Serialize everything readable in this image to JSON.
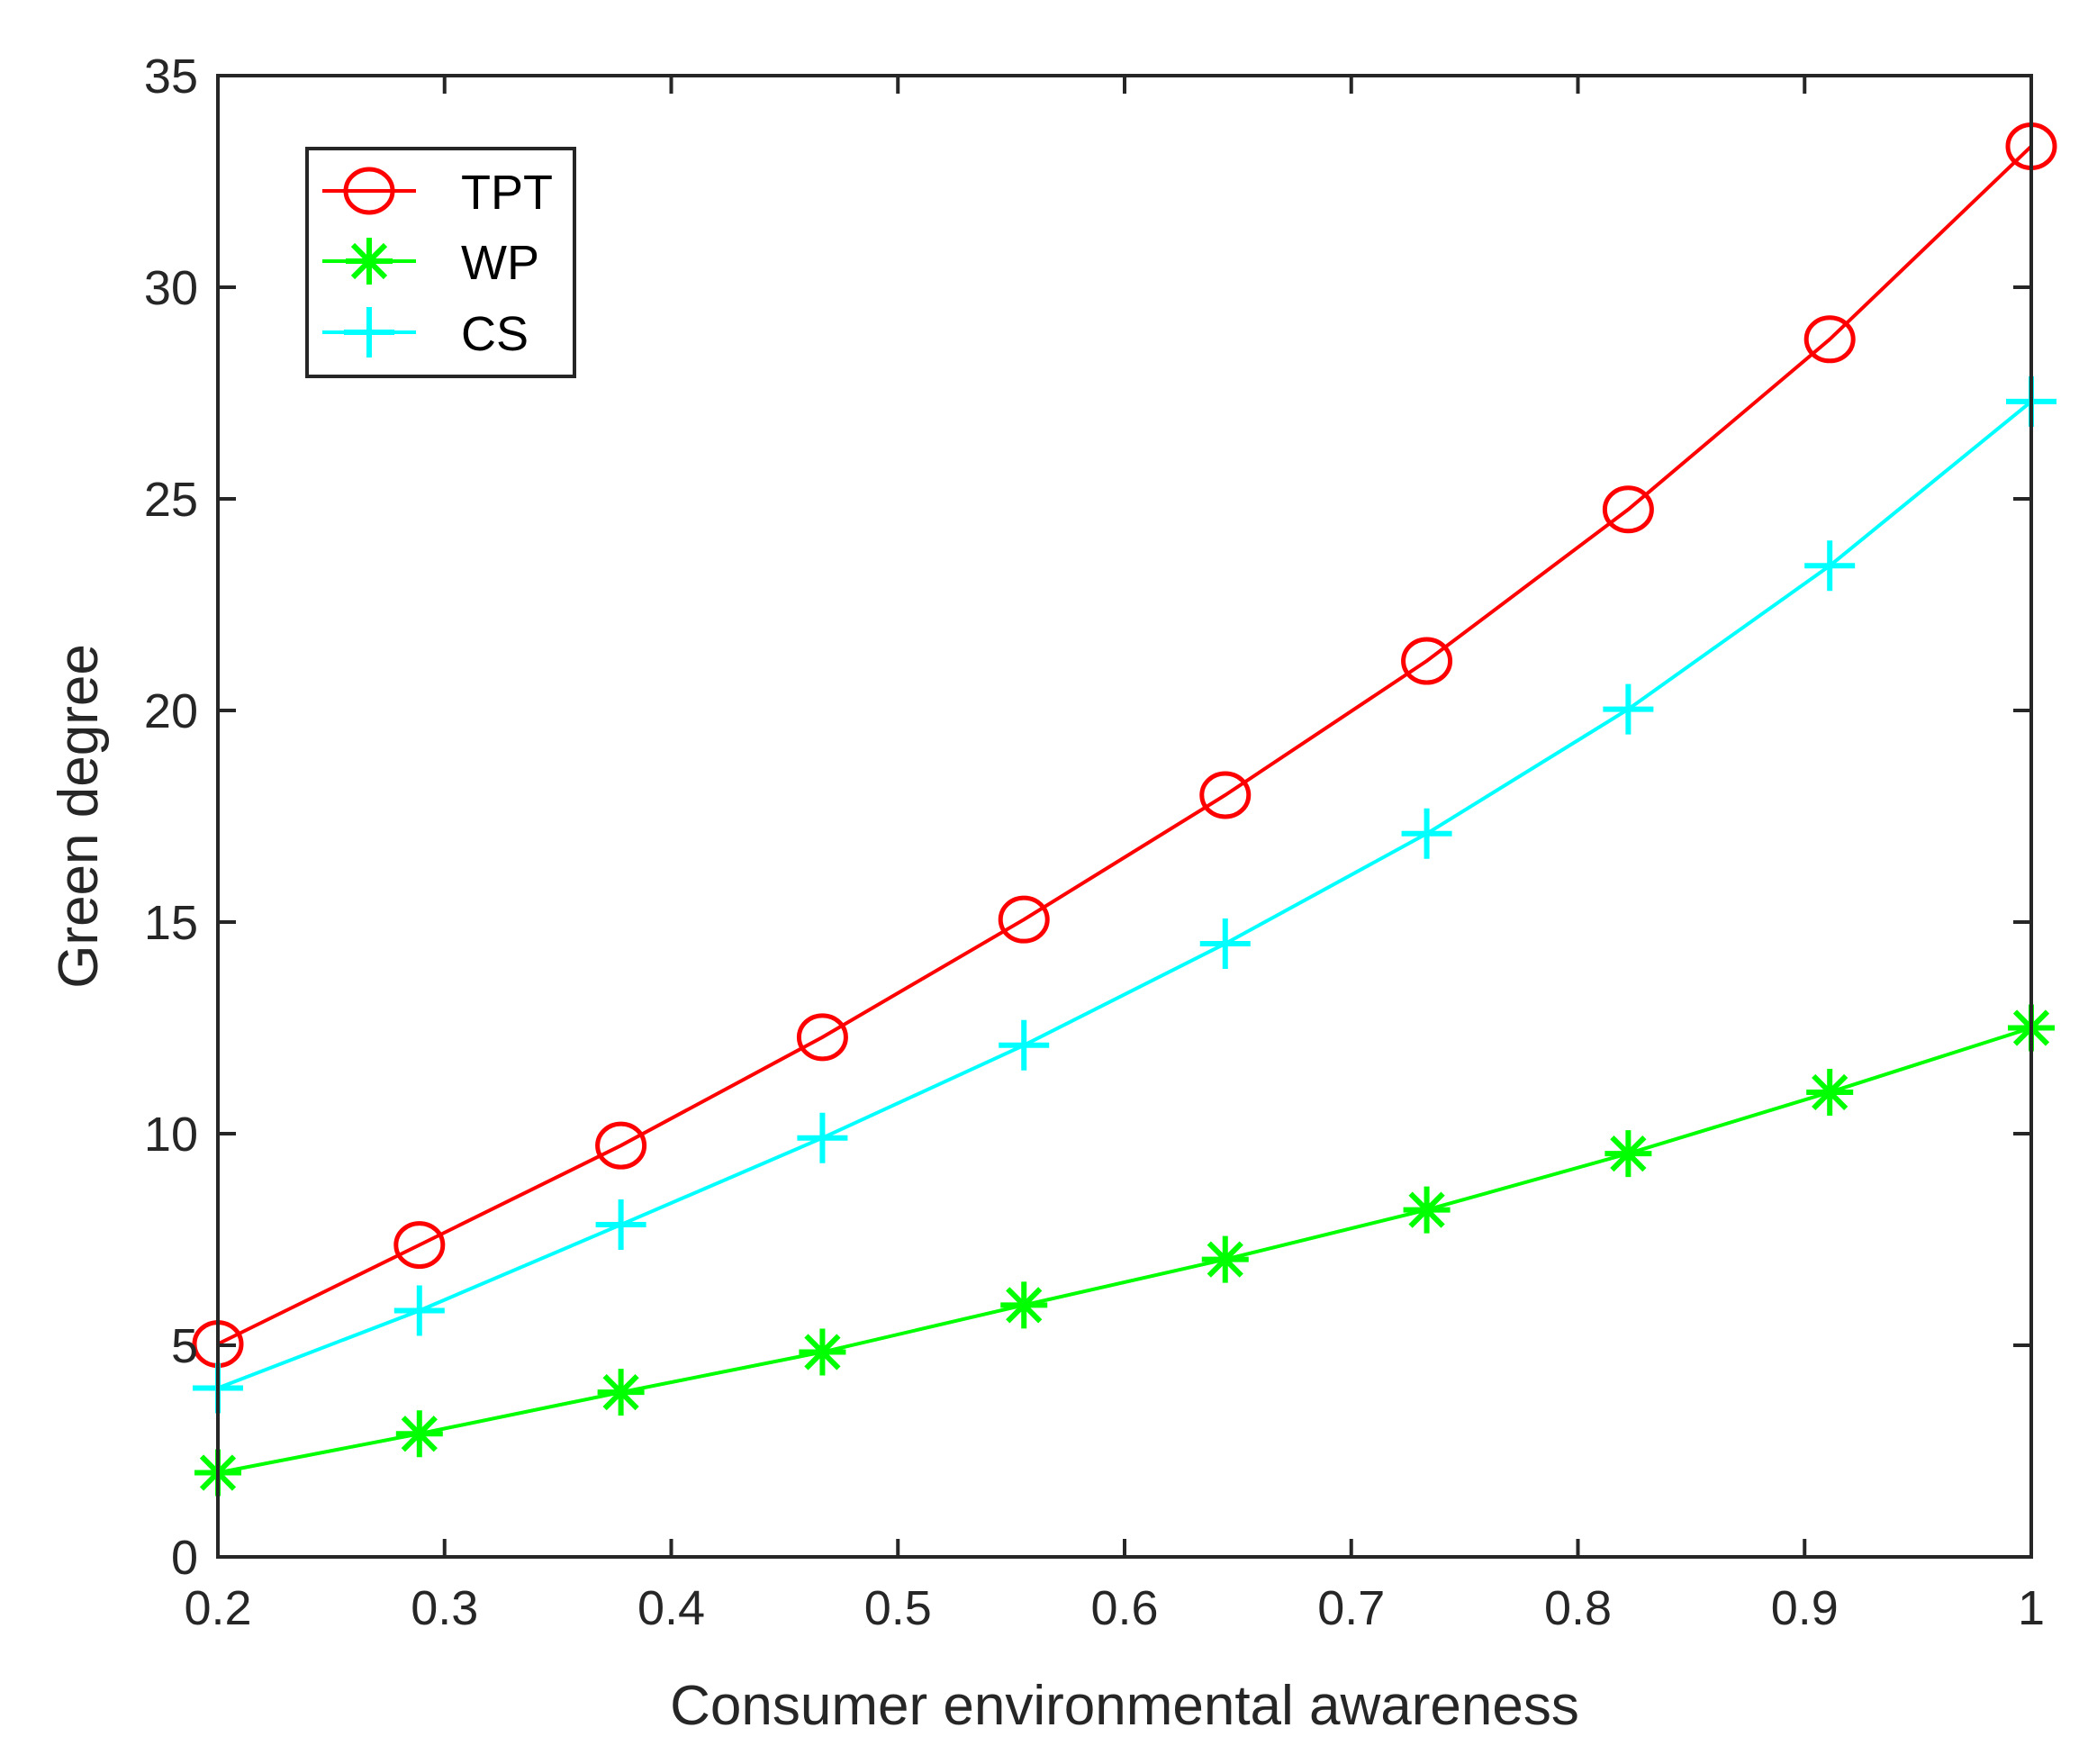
{
  "chart_data": {
    "type": "line",
    "title": "",
    "xlabel": "Consumer environmental awareness",
    "ylabel": "Green degree",
    "xlim": [
      0.2,
      1
    ],
    "ylim": [
      0,
      35
    ],
    "xticks": [
      "0.2",
      "0.3",
      "0.4",
      "0.5",
      "0.6",
      "0.7",
      "0.8",
      "0.9",
      "1"
    ],
    "yticks": [
      "0",
      "5",
      "10",
      "15",
      "20",
      "25",
      "30",
      "35"
    ],
    "grid": false,
    "legend_position": "top-left",
    "x": [
      0.2,
      0.2889,
      0.3778,
      0.4667,
      0.5556,
      0.6444,
      0.7333,
      0.8222,
      0.9111,
      1.0
    ],
    "series": [
      {
        "name": "TPT",
        "color": "#ff0000",
        "marker": "circle",
        "values": [
          5.03,
          7.37,
          9.72,
          12.28,
          15.06,
          18.0,
          21.17,
          24.75,
          28.77,
          33.33
        ]
      },
      {
        "name": "WP",
        "color": "#00ff00",
        "marker": "asterisk",
        "values": [
          1.99,
          2.91,
          3.89,
          4.84,
          5.95,
          7.03,
          8.2,
          9.53,
          10.98,
          12.5
        ]
      },
      {
        "name": "CS",
        "color": "#00ffff",
        "marker": "plus",
        "values": [
          3.99,
          5.82,
          7.85,
          9.9,
          12.09,
          14.49,
          17.09,
          20.03,
          23.42,
          27.3
        ]
      }
    ]
  }
}
